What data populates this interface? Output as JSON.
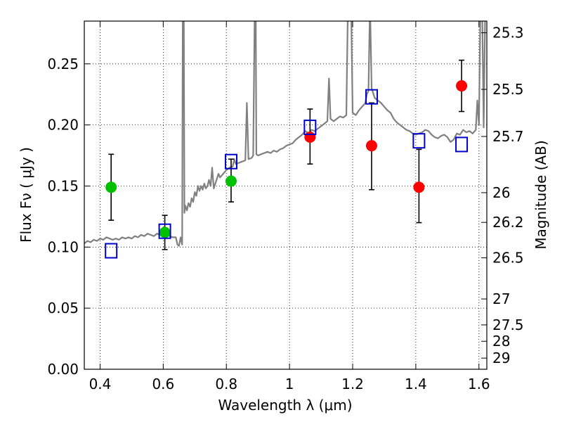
{
  "chart_data": {
    "type": "scatter",
    "xlabel": "Wavelength  λ (μm)",
    "ylabel": "Flux  Fν  ( μJy )",
    "ylabel_right": "Magnitude (AB)",
    "xlim": [
      0.35,
      1.625
    ],
    "ylim": [
      0.0,
      0.285
    ],
    "grid": "dotted",
    "x_ticks": [
      0.4,
      0.6,
      0.8,
      1.0,
      1.2,
      1.4,
      1.6
    ],
    "x_tick_labels": [
      "0.4",
      "0.6",
      "0.8",
      "1",
      "1.2",
      "1.4",
      "1.6"
    ],
    "y_ticks": [
      0.0,
      0.05,
      0.1,
      0.15,
      0.2,
      0.25
    ],
    "y_tick_labels": [
      "0.00",
      "0.05",
      "0.10",
      "0.15",
      "0.20",
      "0.25"
    ],
    "mag_ticks": [
      25.3,
      25.5,
      25.7,
      26,
      26.2,
      26.5,
      27,
      27.5,
      28,
      29
    ],
    "mag_tick_labels": [
      "25.3",
      "25.5",
      "25.7",
      "26",
      "26.2",
      "26.5",
      "27",
      "27.5",
      "28",
      "29"
    ],
    "series": [
      {
        "name": "green-points",
        "color": "#00c000",
        "marker": "circle",
        "points": [
          {
            "x": 0.435,
            "y": 0.149,
            "err_lo": 0.122,
            "err_hi": 0.176
          },
          {
            "x": 0.605,
            "y": 0.112,
            "err_lo": 0.098,
            "err_hi": 0.126
          },
          {
            "x": 0.815,
            "y": 0.154,
            "err_lo": 0.137,
            "err_hi": 0.172
          }
        ]
      },
      {
        "name": "red-points",
        "color": "#ff0000",
        "marker": "circle",
        "points": [
          {
            "x": 1.065,
            "y": 0.19,
            "err_lo": 0.168,
            "err_hi": 0.213
          },
          {
            "x": 1.26,
            "y": 0.183,
            "err_lo": 0.147,
            "err_hi": 0.218
          },
          {
            "x": 1.41,
            "y": 0.149,
            "err_lo": 0.12,
            "err_hi": 0.18
          },
          {
            "x": 1.545,
            "y": 0.232,
            "err_lo": 0.211,
            "err_hi": 0.253
          }
        ]
      },
      {
        "name": "model-photometry",
        "color": "#0000cc",
        "marker": "open-square",
        "points": [
          {
            "x": 0.435,
            "y": 0.097
          },
          {
            "x": 0.605,
            "y": 0.113
          },
          {
            "x": 0.815,
            "y": 0.17
          },
          {
            "x": 1.065,
            "y": 0.198
          },
          {
            "x": 1.26,
            "y": 0.223
          },
          {
            "x": 1.41,
            "y": 0.187
          },
          {
            "x": 1.545,
            "y": 0.184
          }
        ]
      }
    ],
    "spectrum": {
      "name": "model-spectrum",
      "color": "#808080",
      "points": [
        [
          0.35,
          0.103
        ],
        [
          0.36,
          0.105
        ],
        [
          0.37,
          0.104
        ],
        [
          0.38,
          0.106
        ],
        [
          0.39,
          0.105
        ],
        [
          0.4,
          0.107
        ],
        [
          0.41,
          0.106
        ],
        [
          0.42,
          0.108
        ],
        [
          0.43,
          0.107
        ],
        [
          0.44,
          0.106
        ],
        [
          0.45,
          0.107
        ],
        [
          0.46,
          0.106
        ],
        [
          0.47,
          0.108
        ],
        [
          0.48,
          0.107
        ],
        [
          0.49,
          0.108
        ],
        [
          0.5,
          0.107
        ],
        [
          0.51,
          0.109
        ],
        [
          0.52,
          0.108
        ],
        [
          0.53,
          0.11
        ],
        [
          0.54,
          0.109
        ],
        [
          0.55,
          0.111
        ],
        [
          0.56,
          0.11
        ],
        [
          0.57,
          0.109
        ],
        [
          0.58,
          0.111
        ],
        [
          0.59,
          0.11
        ],
        [
          0.6,
          0.109
        ],
        [
          0.61,
          0.11
        ],
        [
          0.62,
          0.109
        ],
        [
          0.63,
          0.108
        ],
        [
          0.64,
          0.108
        ],
        [
          0.645,
          0.102
        ],
        [
          0.65,
          0.101
        ],
        [
          0.655,
          0.108
        ],
        [
          0.66,
          0.102
        ],
        [
          0.662,
          0.3
        ],
        [
          0.665,
          0.3
        ],
        [
          0.667,
          0.128
        ],
        [
          0.67,
          0.134
        ],
        [
          0.675,
          0.13
        ],
        [
          0.68,
          0.136
        ],
        [
          0.685,
          0.133
        ],
        [
          0.69,
          0.14
        ],
        [
          0.695,
          0.137
        ],
        [
          0.7,
          0.145
        ],
        [
          0.705,
          0.142
        ],
        [
          0.71,
          0.15
        ],
        [
          0.715,
          0.146
        ],
        [
          0.72,
          0.15
        ],
        [
          0.725,
          0.147
        ],
        [
          0.73,
          0.152
        ],
        [
          0.735,
          0.148
        ],
        [
          0.74,
          0.15
        ],
        [
          0.745,
          0.155
        ],
        [
          0.75,
          0.15
        ],
        [
          0.755,
          0.165
        ],
        [
          0.76,
          0.148
        ],
        [
          0.765,
          0.152
        ],
        [
          0.77,
          0.156
        ],
        [
          0.775,
          0.16
        ],
        [
          0.78,
          0.157
        ],
        [
          0.79,
          0.16
        ],
        [
          0.8,
          0.163
        ],
        [
          0.81,
          0.165
        ],
        [
          0.82,
          0.166
        ],
        [
          0.825,
          0.172
        ],
        [
          0.83,
          0.168
        ],
        [
          0.84,
          0.169
        ],
        [
          0.85,
          0.17
        ],
        [
          0.86,
          0.171
        ],
        [
          0.865,
          0.218
        ],
        [
          0.87,
          0.172
        ],
        [
          0.88,
          0.173
        ],
        [
          0.885,
          0.175
        ],
        [
          0.89,
          0.3
        ],
        [
          0.893,
          0.3
        ],
        [
          0.895,
          0.176
        ],
        [
          0.9,
          0.175
        ],
        [
          0.91,
          0.176
        ],
        [
          0.92,
          0.177
        ],
        [
          0.93,
          0.178
        ],
        [
          0.94,
          0.177
        ],
        [
          0.95,
          0.179
        ],
        [
          0.96,
          0.178
        ],
        [
          0.97,
          0.18
        ],
        [
          0.98,
          0.181
        ],
        [
          0.99,
          0.183
        ],
        [
          1.0,
          0.184
        ],
        [
          1.01,
          0.185
        ],
        [
          1.02,
          0.188
        ],
        [
          1.03,
          0.19
        ],
        [
          1.04,
          0.192
        ],
        [
          1.05,
          0.195
        ],
        [
          1.06,
          0.193
        ],
        [
          1.07,
          0.196
        ],
        [
          1.08,
          0.195
        ],
        [
          1.09,
          0.197
        ],
        [
          1.1,
          0.199
        ],
        [
          1.11,
          0.201
        ],
        [
          1.12,
          0.203
        ],
        [
          1.125,
          0.238
        ],
        [
          1.13,
          0.205
        ],
        [
          1.14,
          0.203
        ],
        [
          1.15,
          0.205
        ],
        [
          1.16,
          0.207
        ],
        [
          1.17,
          0.206
        ],
        [
          1.18,
          0.208
        ],
        [
          1.185,
          0.3
        ],
        [
          1.19,
          0.3
        ],
        [
          1.195,
          0.3
        ],
        [
          1.2,
          0.21
        ],
        [
          1.21,
          0.208
        ],
        [
          1.22,
          0.212
        ],
        [
          1.23,
          0.215
        ],
        [
          1.24,
          0.218
        ],
        [
          1.245,
          0.225
        ],
        [
          1.25,
          0.228
        ],
        [
          1.255,
          0.3
        ],
        [
          1.26,
          0.23
        ],
        [
          1.265,
          0.226
        ],
        [
          1.27,
          0.222
        ],
        [
          1.28,
          0.22
        ],
        [
          1.29,
          0.218
        ],
        [
          1.3,
          0.215
        ],
        [
          1.31,
          0.212
        ],
        [
          1.32,
          0.21
        ],
        [
          1.33,
          0.205
        ],
        [
          1.34,
          0.202
        ],
        [
          1.35,
          0.2
        ],
        [
          1.36,
          0.198
        ],
        [
          1.37,
          0.196
        ],
        [
          1.38,
          0.195
        ],
        [
          1.39,
          0.193
        ],
        [
          1.4,
          0.192
        ],
        [
          1.41,
          0.193
        ],
        [
          1.42,
          0.194
        ],
        [
          1.43,
          0.196
        ],
        [
          1.44,
          0.195
        ],
        [
          1.45,
          0.192
        ],
        [
          1.46,
          0.19
        ],
        [
          1.47,
          0.189
        ],
        [
          1.48,
          0.191
        ],
        [
          1.49,
          0.192
        ],
        [
          1.5,
          0.19
        ],
        [
          1.51,
          0.186
        ],
        [
          1.52,
          0.188
        ],
        [
          1.53,
          0.193
        ],
        [
          1.54,
          0.192
        ],
        [
          1.55,
          0.196
        ],
        [
          1.56,
          0.194
        ],
        [
          1.57,
          0.195
        ],
        [
          1.58,
          0.193
        ],
        [
          1.59,
          0.196
        ],
        [
          1.595,
          0.22
        ],
        [
          1.6,
          0.2
        ],
        [
          1.605,
          0.3
        ],
        [
          1.61,
          0.3
        ],
        [
          1.615,
          0.198
        ],
        [
          1.62,
          0.3
        ],
        [
          1.625,
          0.3
        ]
      ]
    }
  }
}
